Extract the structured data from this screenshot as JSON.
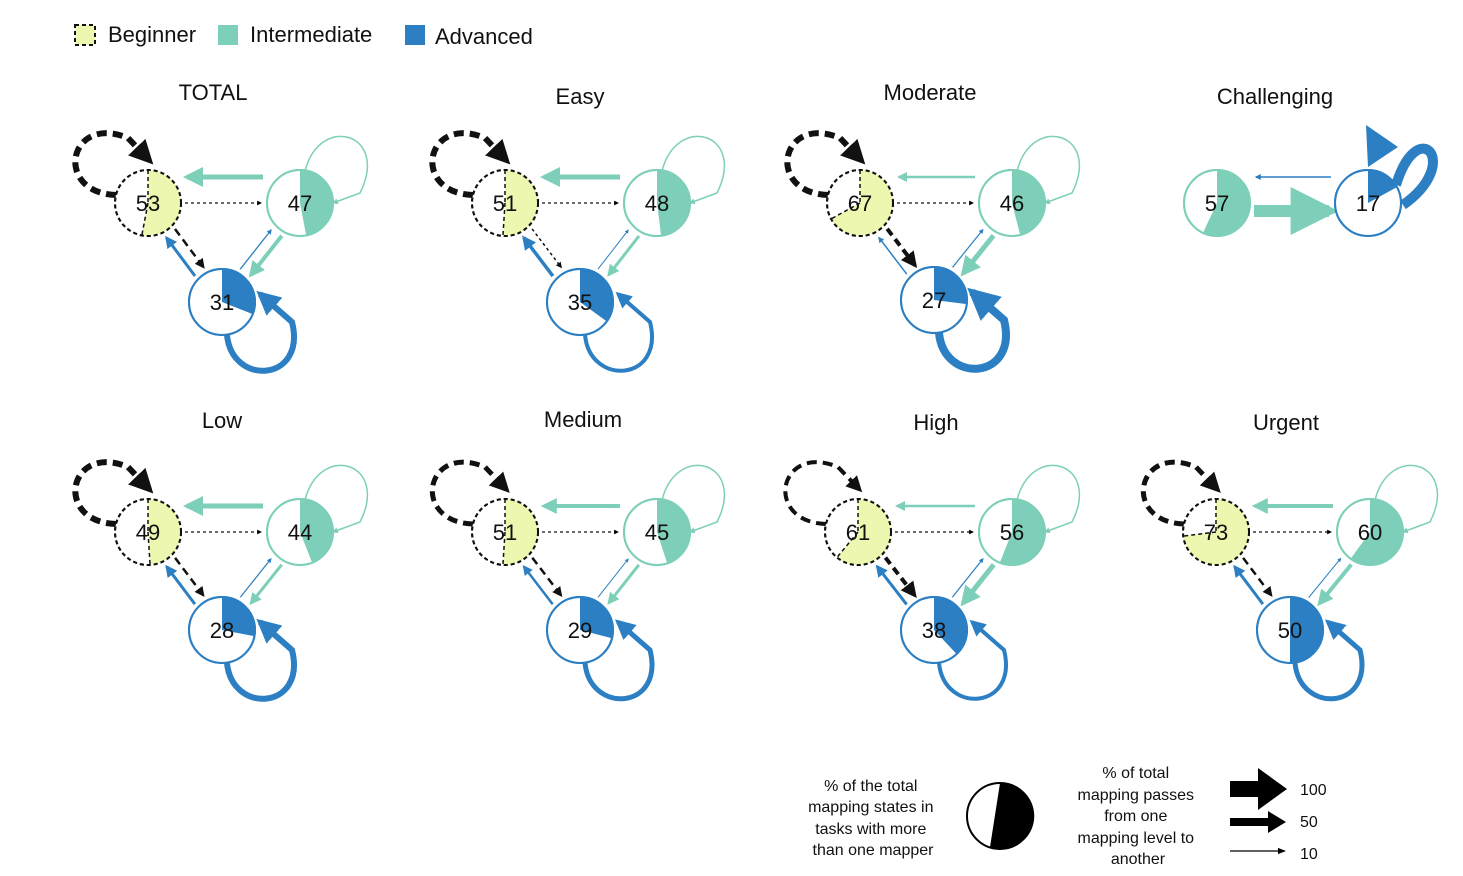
{
  "legend": {
    "beginner": "Beginner",
    "intermediate": "Intermediate",
    "advanced": "Advanced"
  },
  "colors": {
    "beginner": "#eef7b0",
    "beginner_stroke": "#111111",
    "intermediate": "#7ecfb9",
    "advanced": "#2b7fc2"
  },
  "panels": [
    {
      "title": "TOTAL",
      "nodes": {
        "beginner": 53,
        "intermediate": 47,
        "advanced": 31
      }
    },
    {
      "title": "Easy",
      "nodes": {
        "beginner": 51,
        "intermediate": 48,
        "advanced": 35
      }
    },
    {
      "title": "Moderate",
      "nodes": {
        "beginner": 67,
        "intermediate": 46,
        "advanced": 27
      }
    },
    {
      "title": "Challenging",
      "nodes": {
        "intermediate": 57,
        "advanced": 17
      }
    },
    {
      "title": "Low",
      "nodes": {
        "beginner": 49,
        "intermediate": 44,
        "advanced": 28
      }
    },
    {
      "title": "Medium",
      "nodes": {
        "beginner": 51,
        "intermediate": 45,
        "advanced": 29
      }
    },
    {
      "title": "High",
      "nodes": {
        "beginner": 61,
        "intermediate": 56,
        "advanced": 38
      }
    },
    {
      "title": "Urgent",
      "nodes": {
        "beginner": 73,
        "intermediate": 60,
        "advanced": 50
      }
    }
  ],
  "key": {
    "pie_text": "% of the total mapping states in tasks with more than one mapper",
    "pie_lines": [
      "% of the total",
      "mapping states in",
      "tasks with more",
      "than one mapper"
    ],
    "arrow_text": "% of total mapping passes from one mapping level to another",
    "arrow_lines": [
      "% of total",
      "mapping passes",
      "from one",
      "mapping level to",
      "another"
    ],
    "arrow_values": [
      "100",
      "50",
      "10"
    ]
  }
}
